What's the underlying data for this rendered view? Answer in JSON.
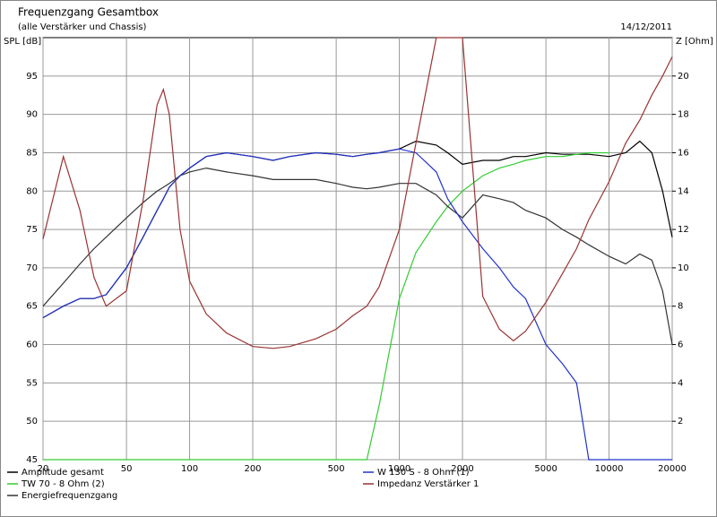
{
  "chart_data": {
    "type": "line",
    "title": "Frequenzgang Gesamtbox",
    "subtitle": "(alle Verstärker und Chassis)",
    "date": "14/12/2011",
    "y_label": "SPL [dB]",
    "y2_label": "Z [Ohm]",
    "log_x": true,
    "grid": true,
    "x": [
      20,
      25,
      30,
      35,
      40,
      50,
      60,
      70,
      75,
      80,
      90,
      100,
      120,
      150,
      200,
      250,
      300,
      400,
      500,
      600,
      700,
      800,
      1000,
      1200,
      1500,
      1700,
      2000,
      2500,
      3000,
      3500,
      4000,
      5000,
      6000,
      7000,
      8000,
      10000,
      12000,
      14000,
      16000,
      18000,
      20000
    ],
    "xlim": [
      20,
      20000
    ],
    "xticks": [
      20,
      50,
      100,
      200,
      500,
      1000,
      2000,
      5000,
      10000,
      20000
    ],
    "ylim": [
      45,
      100
    ],
    "yticks": [
      45,
      50,
      55,
      60,
      65,
      70,
      75,
      80,
      85,
      90,
      95
    ],
    "y2lim": [
      0,
      22
    ],
    "y2ticks": [
      2,
      4,
      6,
      8,
      10,
      12,
      14,
      16,
      18,
      20
    ],
    "series": [
      {
        "name": "Amplitude gesamt",
        "color": "#000000",
        "values": [
          63.5,
          65,
          66,
          66,
          66.5,
          70,
          74,
          77.5,
          79,
          80.5,
          82,
          83,
          84.5,
          85,
          84.5,
          84,
          84.5,
          85,
          84.8,
          84.5,
          84.8,
          85,
          85.5,
          86.5,
          86,
          85,
          83.5,
          84,
          84,
          84.5,
          84.5,
          85,
          84.8,
          84.8,
          84.8,
          84.5,
          85,
          86.5,
          85,
          80,
          74
        ]
      },
      {
        "name": "TW 70 - 8 Ohm (2)",
        "color": "#33cc33",
        "values": [
          45,
          45,
          45,
          45,
          45,
          45,
          45,
          45,
          45,
          45,
          45,
          45,
          45,
          45,
          45,
          45,
          45,
          45,
          45,
          45,
          45,
          52,
          66,
          72,
          76,
          78,
          80,
          82,
          83,
          83.5,
          84,
          84.5,
          84.5,
          84.8,
          85,
          85,
          null,
          null,
          null,
          null,
          null
        ]
      },
      {
        "name": "Energiefrequenzgang",
        "color": "#333333",
        "values": [
          65,
          68,
          70.5,
          72.5,
          74,
          76.5,
          78.5,
          80,
          80.5,
          81,
          82,
          82.5,
          83,
          82.5,
          82,
          81.5,
          81.5,
          81.5,
          81,
          80.5,
          80.3,
          80.5,
          81,
          81,
          79.5,
          78,
          76.5,
          79.5,
          79,
          78.5,
          77.5,
          76.5,
          75,
          74,
          73,
          71.5,
          70.5,
          71.8,
          71,
          67,
          60
        ]
      },
      {
        "name": "W 130 S - 8 Ohm (1)",
        "color": "#2233cc",
        "values": [
          63.5,
          65,
          66,
          66,
          66.5,
          70,
          74,
          77.5,
          79,
          80.5,
          82,
          83,
          84.5,
          85,
          84.5,
          84,
          84.5,
          85,
          84.8,
          84.5,
          84.8,
          85,
          85.5,
          85,
          82.5,
          79,
          76,
          72.5,
          70,
          67.5,
          66,
          60,
          57.5,
          55,
          45,
          45,
          45,
          45,
          45,
          45,
          45
        ]
      },
      {
        "name": "Impedanz Verstärker 1",
        "color": "#993333",
        "axis": "y2",
        "values": [
          11.5,
          15.8,
          13,
          9.5,
          8,
          8.8,
          13.5,
          18.5,
          19.3,
          18,
          12,
          9.3,
          7.6,
          6.6,
          5.9,
          5.8,
          5.9,
          6.3,
          6.8,
          7.5,
          8,
          9,
          12,
          16.5,
          22,
          22,
          22,
          8.5,
          6.8,
          6.2,
          6.7,
          8.2,
          9.7,
          11,
          12.5,
          14.5,
          16.5,
          17.7,
          19,
          20,
          21
        ]
      }
    ]
  }
}
